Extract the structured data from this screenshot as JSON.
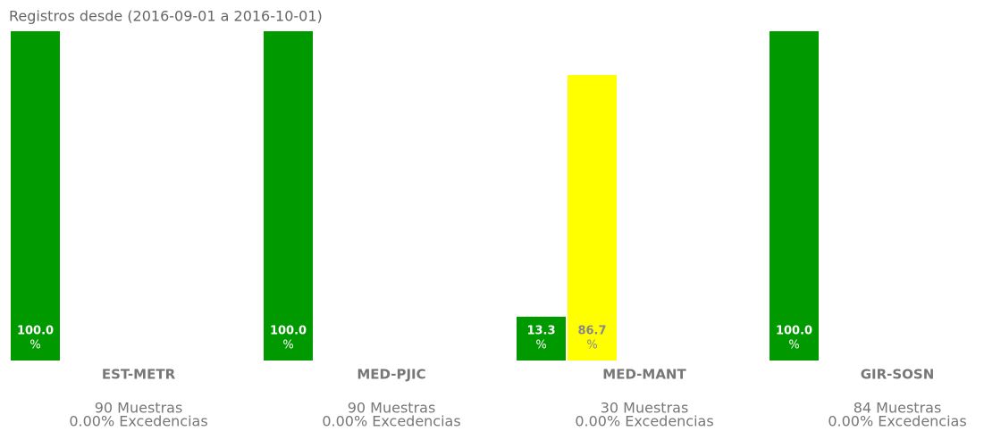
{
  "chart_data": {
    "type": "bar",
    "title": "Registros desde (2016-09-01 a 2016-10-01)",
    "categories": [
      "EST-METR",
      "MED-PJIC",
      "MED-MANT",
      "GIR-SOSN"
    ],
    "series": [
      {
        "color": "#009900",
        "values": [
          100,
          100,
          13.3,
          100
        ],
        "value_labels": [
          "100.0",
          "100.0",
          "13.3",
          "100.0"
        ],
        "label_color": "#ffffff"
      },
      {
        "color": "#ffff00",
        "values": [
          null,
          null,
          86.7,
          null
        ],
        "value_labels": [
          null,
          null,
          "86.7",
          null
        ],
        "label_color": "#888888"
      }
    ],
    "unit_label": "%",
    "sample_labels": [
      "90 Muestras",
      "90 Muestras",
      "30 Muestras",
      "84 Muestras"
    ],
    "exceedance_labels": [
      "0.00% Excedencias",
      "0.00% Excedencias",
      "0.00% Excedencias",
      "0.00% Excedencias"
    ],
    "ylim": [
      0,
      100
    ]
  }
}
